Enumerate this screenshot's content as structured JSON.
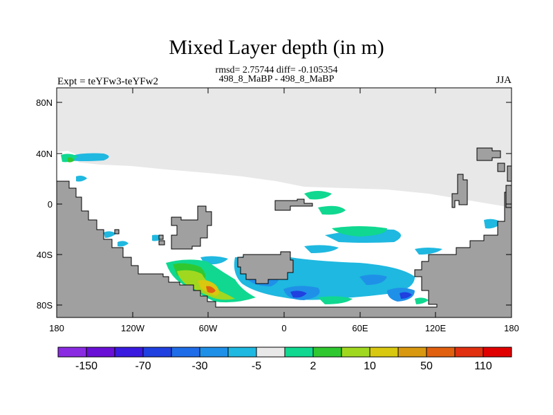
{
  "title": "Mixed Layer depth (in m)",
  "stats": "rmsd= 2.75744  diff= -0.105354",
  "period": "498_8_MaBP - 498_8_MaBP",
  "experiment": "Expt = teYFw3-teYFw2",
  "season": "JJA",
  "map": {
    "lat_ticks": [
      "80N",
      "40N",
      "0",
      "40S",
      "80S"
    ],
    "lon_ticks": [
      "180",
      "120W",
      "60W",
      "0",
      "60E",
      "120E",
      "180"
    ],
    "colors": {
      "land": "#a0a0a0",
      "no_data": "#e8e8e8",
      "ocean": "#ffffff"
    }
  },
  "colorbar": {
    "colors": [
      "#8a2be2",
      "#6a0fd6",
      "#3a1adf",
      "#2040e0",
      "#1f6ce8",
      "#1f90e8",
      "#1fb8e0",
      "#e8e8e8",
      "#10d890",
      "#30c830",
      "#a0d820",
      "#d8c810",
      "#d89810",
      "#e06010",
      "#e03010",
      "#e00000"
    ],
    "labels": [
      "-150",
      "-70",
      "-30",
      "-5",
      "2",
      "10",
      "50",
      "110"
    ]
  }
}
